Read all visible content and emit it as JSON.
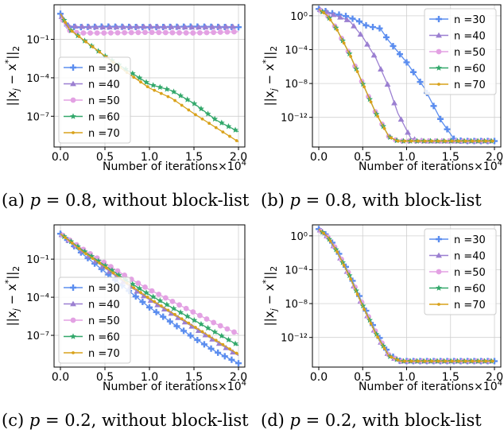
{
  "captions": {
    "a": {
      "prefix": "(a) ",
      "var": "p",
      "rest": " = 0.8, without block-list"
    },
    "b": {
      "prefix": "(b) ",
      "var": "p",
      "rest": " = 0.8, with block-list"
    },
    "c": {
      "prefix": "(c) ",
      "var": "p",
      "rest": " = 0.2, without block-list"
    },
    "d": {
      "prefix": "(d) ",
      "var": "p",
      "rest": " = 0.2, with block-list"
    }
  },
  "chart_data": [
    {
      "type": "line",
      "panel": "a",
      "xlabel": "Number of iterations",
      "x_multiplier": "×10",
      "x_multiplier_exp": "4",
      "ylabel": "||x_j − x*||_2",
      "y_scale": "log",
      "xlim": [
        0.0,
        2.0
      ],
      "ylim_exp": [
        -9.4,
        1.7
      ],
      "x_ticks": [
        "0.0",
        "0.5",
        "1.0",
        "1.5",
        "2.0"
      ],
      "y_ticks": [
        {
          "exp": -7,
          "label": "10⁻⁷"
        },
        {
          "exp": -4,
          "label": "10⁻⁴"
        },
        {
          "exp": -1,
          "label": "10⁻¹"
        }
      ],
      "grid": true,
      "legend_position": "lower-left",
      "series": [
        {
          "name": "n =30",
          "color": "#5b8def",
          "marker": "plus",
          "x": [
            0.0,
            0.05,
            0.1,
            0.2,
            0.5,
            1.0,
            1.5,
            2.0
          ],
          "y_exp": [
            1.0,
            0.15,
            0.0,
            -0.05,
            0.0,
            -0.05,
            0.0,
            -0.05
          ]
        },
        {
          "name": "n =40",
          "color": "#9b7fd1",
          "marker": "triangle",
          "x": [
            0.0,
            0.05,
            0.1,
            0.2,
            0.5,
            1.0,
            1.5,
            2.0
          ],
          "y_exp": [
            1.0,
            0.2,
            0.05,
            0.0,
            -0.05,
            0.0,
            -0.05,
            0.0
          ]
        },
        {
          "name": "n =50",
          "color": "#e3a1e3",
          "marker": "circle",
          "x": [
            0.0,
            0.05,
            0.1,
            0.2,
            0.5,
            1.0,
            1.5,
            2.0
          ],
          "y_exp": [
            1.0,
            0.1,
            -0.3,
            -0.5,
            -0.5,
            -0.45,
            -0.5,
            -0.4
          ]
        },
        {
          "name": "n =60",
          "color": "#33a86b",
          "marker": "star",
          "x": [
            0.0,
            0.1,
            0.25,
            0.5,
            0.75,
            1.0,
            1.25,
            1.5,
            1.75,
            2.0
          ],
          "y_exp": [
            1.0,
            -0.2,
            -1.0,
            -2.3,
            -3.4,
            -4.5,
            -5.0,
            -6.0,
            -7.3,
            -8.2
          ]
        },
        {
          "name": "n =70",
          "color": "#d9a21b",
          "marker": "dot",
          "x": [
            0.0,
            0.1,
            0.25,
            0.5,
            0.75,
            1.0,
            1.25,
            1.5,
            1.75,
            2.0
          ],
          "y_exp": [
            1.0,
            -0.2,
            -1.0,
            -2.3,
            -3.6,
            -4.8,
            -5.6,
            -6.8,
            -7.9,
            -9.0
          ]
        }
      ]
    },
    {
      "type": "line",
      "panel": "b",
      "xlabel": "Number of iterations",
      "x_multiplier": "×10",
      "x_multiplier_exp": "4",
      "ylabel": "||x_j − x*||_2",
      "y_scale": "log",
      "xlim": [
        0.0,
        2.0
      ],
      "ylim_exp": [
        -15.5,
        1.3
      ],
      "x_ticks": [
        "0.0",
        "0.5",
        "1.0",
        "1.5",
        "2.0"
      ],
      "y_ticks": [
        {
          "exp": -12,
          "label": "10⁻¹²"
        },
        {
          "exp": -8,
          "label": "10⁻⁸"
        },
        {
          "exp": -4,
          "label": "10⁻⁴"
        },
        {
          "exp": 0,
          "label": "10⁰"
        }
      ],
      "grid": true,
      "legend_position": "top-right",
      "series": [
        {
          "name": "n =30",
          "color": "#5b8def",
          "marker": "plus",
          "x": [
            0.0,
            0.15,
            0.3,
            0.45,
            0.55,
            0.7,
            0.8,
            1.0,
            1.2,
            1.4,
            1.55,
            1.7,
            2.0
          ],
          "y_exp": [
            0.8,
            0.3,
            0.0,
            -0.6,
            -1.2,
            -1.5,
            -3.0,
            -5.5,
            -8.5,
            -12.5,
            -14.7,
            -14.8,
            -14.8
          ]
        },
        {
          "name": "n =40",
          "color": "#9b7fd1",
          "marker": "triangle",
          "x": [
            0.0,
            0.15,
            0.35,
            0.5,
            0.65,
            0.8,
            0.9,
            1.05,
            1.2,
            2.0
          ],
          "y_exp": [
            0.8,
            0.2,
            -0.6,
            -2.5,
            -5.0,
            -8.5,
            -11.5,
            -14.5,
            -14.8,
            -14.8
          ]
        },
        {
          "name": "n =50",
          "color": "#e3a1e3",
          "marker": "circle",
          "x": [
            0.0,
            0.1,
            0.2,
            0.35,
            0.5,
            0.65,
            0.8,
            0.9,
            2.0
          ],
          "y_exp": [
            0.8,
            0.0,
            -1.5,
            -4.5,
            -8.0,
            -11.5,
            -14.3,
            -14.8,
            -14.8
          ]
        },
        {
          "name": "n =60",
          "color": "#33a86b",
          "marker": "star",
          "x": [
            0.0,
            0.1,
            0.2,
            0.35,
            0.5,
            0.65,
            0.8,
            0.9,
            2.0
          ],
          "y_exp": [
            0.8,
            0.0,
            -1.5,
            -4.5,
            -8.0,
            -11.5,
            -14.3,
            -14.8,
            -14.8
          ]
        },
        {
          "name": "n =70",
          "color": "#d9a21b",
          "marker": "dot",
          "x": [
            0.0,
            0.1,
            0.2,
            0.35,
            0.5,
            0.65,
            0.8,
            0.9,
            2.0
          ],
          "y_exp": [
            0.8,
            0.0,
            -1.5,
            -4.5,
            -8.0,
            -11.5,
            -14.3,
            -14.8,
            -14.8
          ]
        }
      ]
    },
    {
      "type": "line",
      "panel": "c",
      "xlabel": "Number of iterations",
      "x_multiplier": "×10",
      "x_multiplier_exp": "4",
      "ylabel": "||x_j − x*||_2",
      "y_scale": "log",
      "xlim": [
        0.0,
        2.0
      ],
      "ylim_exp": [
        -9.5,
        1.7
      ],
      "x_ticks": [
        "0.0",
        "0.5",
        "1.0",
        "1.5",
        "2.0"
      ],
      "y_ticks": [
        {
          "exp": -7,
          "label": "10⁻⁷"
        },
        {
          "exp": -4,
          "label": "10⁻⁴"
        },
        {
          "exp": -1,
          "label": "10⁻¹"
        }
      ],
      "grid": true,
      "legend_position": "lower-left",
      "series": [
        {
          "name": "n =30",
          "color": "#5b8def",
          "marker": "plus",
          "x": [
            0.0,
            0.25,
            0.5,
            0.75,
            1.0,
            1.25,
            1.5,
            1.75,
            2.0
          ],
          "y_exp": [
            1.0,
            -0.6,
            -2.0,
            -3.4,
            -4.8,
            -6.0,
            -7.2,
            -8.3,
            -9.2
          ]
        },
        {
          "name": "n =40",
          "color": "#9b7fd1",
          "marker": "triangle",
          "x": [
            0.0,
            0.25,
            0.5,
            0.75,
            1.0,
            1.25,
            1.5,
            1.75,
            2.0
          ],
          "y_exp": [
            1.0,
            -0.4,
            -1.7,
            -3.0,
            -4.2,
            -5.3,
            -6.4,
            -7.5,
            -8.6
          ]
        },
        {
          "name": "n =50",
          "color": "#e3a1e3",
          "marker": "circle",
          "x": [
            0.0,
            0.25,
            0.5,
            0.75,
            1.0,
            1.25,
            1.5,
            1.75,
            2.0
          ],
          "y_exp": [
            1.0,
            -0.2,
            -1.3,
            -2.4,
            -3.4,
            -4.3,
            -5.2,
            -6.1,
            -6.9
          ]
        },
        {
          "name": "n =60",
          "color": "#33a86b",
          "marker": "star",
          "x": [
            0.0,
            0.25,
            0.5,
            0.75,
            1.0,
            1.25,
            1.5,
            1.75,
            2.0
          ],
          "y_exp": [
            1.0,
            -0.3,
            -1.5,
            -2.7,
            -3.8,
            -4.8,
            -5.8,
            -6.8,
            -7.8
          ]
        },
        {
          "name": "n =70",
          "color": "#d9a21b",
          "marker": "dot",
          "x": [
            0.0,
            0.25,
            0.5,
            0.75,
            1.0,
            1.25,
            1.5,
            1.75,
            2.0
          ],
          "y_exp": [
            1.0,
            -0.4,
            -1.6,
            -2.9,
            -4.1,
            -5.2,
            -6.3,
            -7.4,
            -8.5
          ]
        }
      ]
    },
    {
      "type": "line",
      "panel": "d",
      "xlabel": "Number of iterations",
      "x_multiplier": "×10",
      "x_multiplier_exp": "4",
      "ylabel": "||x_j − x*||_2",
      "y_scale": "log",
      "xlim": [
        0.0,
        2.0
      ],
      "ylim_exp": [
        -15.5,
        1.3
      ],
      "x_ticks": [
        "0.0",
        "0.5",
        "1.0",
        "1.5",
        "2.0"
      ],
      "y_ticks": [
        {
          "exp": -12,
          "label": "10⁻¹²"
        },
        {
          "exp": -8,
          "label": "10⁻⁸"
        },
        {
          "exp": -4,
          "label": "10⁻⁴"
        },
        {
          "exp": 0,
          "label": "10⁰"
        }
      ],
      "grid": true,
      "legend_position": "top-right",
      "series": [
        {
          "name": "n =30",
          "color": "#5b8def",
          "marker": "plus",
          "x": [
            0.0,
            0.1,
            0.2,
            0.35,
            0.5,
            0.65,
            0.8,
            0.93,
            2.0
          ],
          "y_exp": [
            0.8,
            0.0,
            -1.5,
            -4.5,
            -8.0,
            -11.3,
            -14.0,
            -14.8,
            -14.8
          ]
        },
        {
          "name": "n =40",
          "color": "#9b7fd1",
          "marker": "triangle",
          "x": [
            0.0,
            0.1,
            0.2,
            0.35,
            0.5,
            0.65,
            0.8,
            0.93,
            2.0
          ],
          "y_exp": [
            0.8,
            -0.1,
            -1.7,
            -4.8,
            -8.3,
            -11.6,
            -14.2,
            -14.8,
            -14.8
          ]
        },
        {
          "name": "n =50",
          "color": "#e3a1e3",
          "marker": "circle",
          "x": [
            0.0,
            0.1,
            0.2,
            0.35,
            0.5,
            0.65,
            0.8,
            0.93,
            2.0
          ],
          "y_exp": [
            0.8,
            -0.1,
            -1.6,
            -4.6,
            -8.1,
            -11.4,
            -14.1,
            -14.8,
            -14.8
          ]
        },
        {
          "name": "n =60",
          "color": "#33a86b",
          "marker": "star",
          "x": [
            0.0,
            0.1,
            0.2,
            0.35,
            0.5,
            0.65,
            0.8,
            0.93,
            2.0
          ],
          "y_exp": [
            0.8,
            -0.1,
            -1.7,
            -4.7,
            -8.2,
            -11.5,
            -14.2,
            -14.8,
            -14.8
          ]
        },
        {
          "name": "n =70",
          "color": "#d9a21b",
          "marker": "dot",
          "x": [
            0.0,
            0.1,
            0.2,
            0.35,
            0.5,
            0.65,
            0.8,
            0.93,
            2.0
          ],
          "y_exp": [
            0.8,
            -0.1,
            -1.7,
            -4.8,
            -8.3,
            -11.6,
            -14.2,
            -14.8,
            -14.8
          ]
        }
      ]
    }
  ]
}
